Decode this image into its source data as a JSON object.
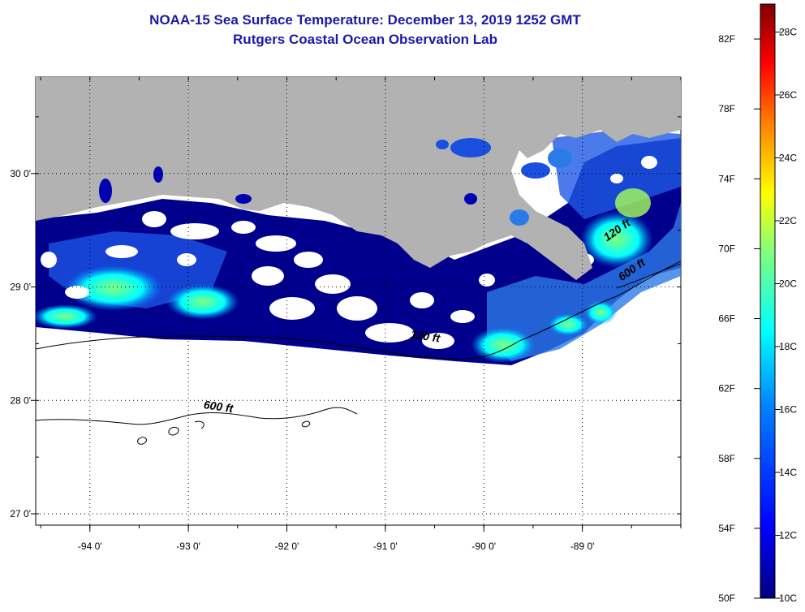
{
  "header": {
    "title": "NOAA-15 Sea Surface Temperature:  December 13, 2019 1252 GMT",
    "subtitle": "Rutgers Coastal Ocean Observation Lab"
  },
  "map": {
    "lat_ticks": [
      {
        "value": 30,
        "label": "30 0'"
      },
      {
        "value": 29,
        "label": "29 0'"
      },
      {
        "value": 28,
        "label": "28 0'"
      },
      {
        "value": 27,
        "label": "27 0'"
      }
    ],
    "lon_ticks": [
      {
        "value": -94,
        "label": "-94 0'"
      },
      {
        "value": -93,
        "label": "-93 0'"
      },
      {
        "value": -92,
        "label": "-92 0'"
      },
      {
        "value": -91,
        "label": "-91 0'"
      },
      {
        "value": -90,
        "label": "-90 0'"
      },
      {
        "value": -89,
        "label": "-89 0'"
      }
    ],
    "lat_range": [
      26.9,
      30.85
    ],
    "lon_range": [
      -94.55,
      -88.0
    ],
    "contour_labels": [
      {
        "text": "120 ft",
        "lon": -90.75,
        "lat": 28.55
      },
      {
        "text": "600 ft",
        "lon": -92.85,
        "lat": 27.93
      },
      {
        "text": "120 ft",
        "lon": -88.75,
        "lat": 29.4
      },
      {
        "text": "600 ft",
        "lon": -88.6,
        "lat": 29.05
      }
    ],
    "colors": {
      "land": "#b2b2b2",
      "cloud": "#ffffff",
      "water_cold": "#00008c",
      "contour": "#000000"
    }
  },
  "colorbar": {
    "fahrenheit_labels": [
      "82F",
      "78F",
      "74F",
      "70F",
      "66F",
      "62F",
      "58F",
      "54F",
      "50F"
    ],
    "celsius_labels": [
      "28C",
      "26C",
      "24C",
      "22C",
      "20C",
      "18C",
      "16C",
      "14C",
      "12C",
      "10C"
    ],
    "f_range": [
      50,
      84
    ],
    "colors": [
      "#00007f",
      "#0000ff",
      "#007fff",
      "#00ffff",
      "#7fff7f",
      "#ffff00",
      "#ff7f00",
      "#ff0000",
      "#7f0000"
    ]
  }
}
